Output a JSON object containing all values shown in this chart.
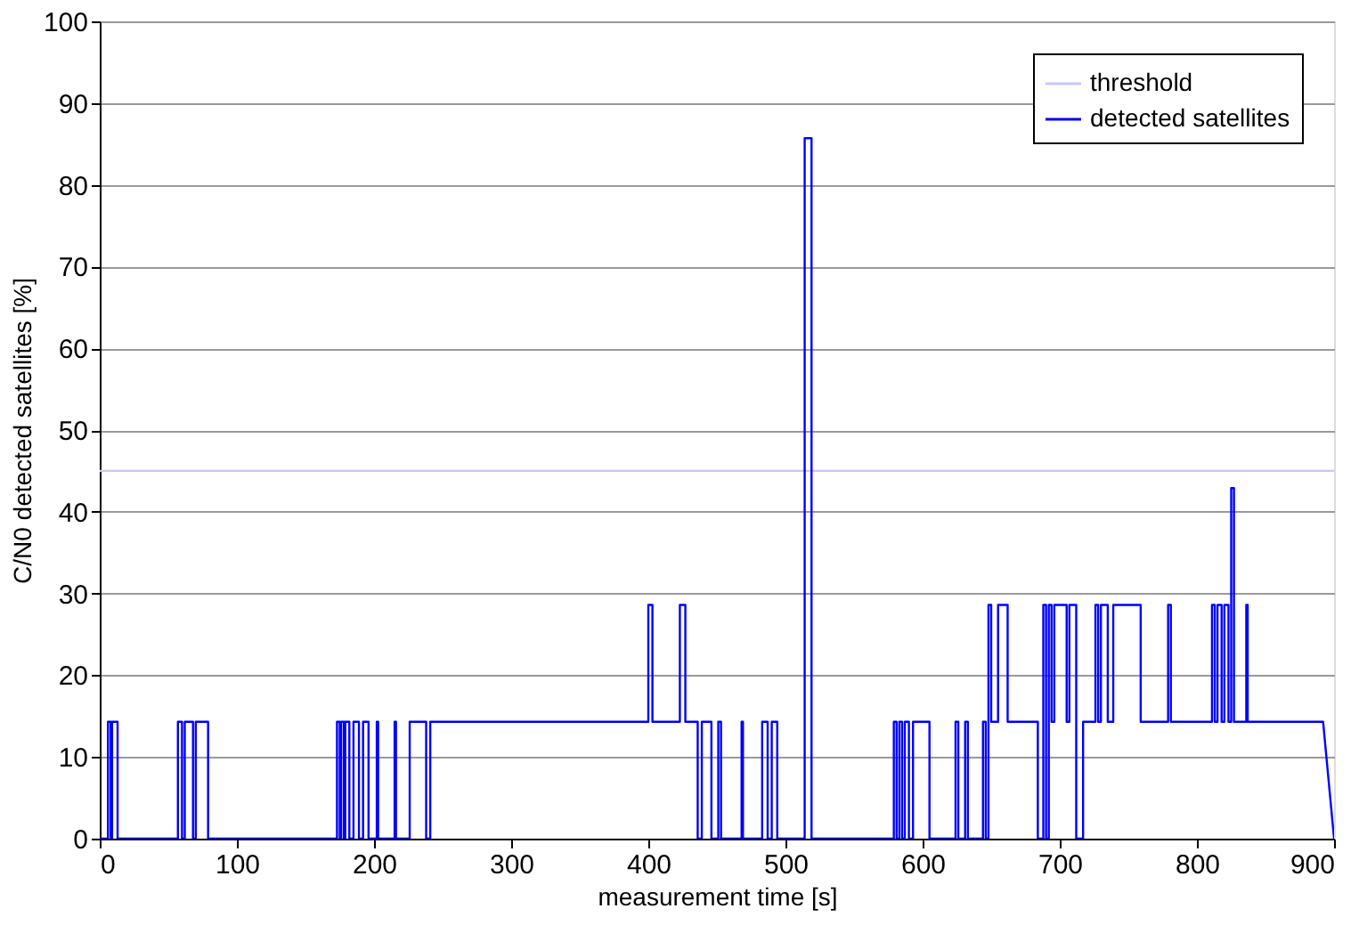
{
  "chart_data": {
    "type": "line",
    "xlabel": "measurement time  [s]",
    "ylabel": "C/N0 detected satellites  [%]",
    "xlim": [
      0,
      900
    ],
    "xticks": [
      0,
      100,
      200,
      300,
      400,
      500,
      600,
      700,
      800,
      900
    ],
    "ylim": [
      0,
      100
    ],
    "yticks": [
      0,
      10,
      20,
      30,
      40,
      50,
      60,
      70,
      80,
      90,
      100
    ],
    "grid": "y",
    "legend": "top right",
    "line_style": "solid",
    "marker": "none",
    "series": [
      {
        "name": "threshold",
        "color": "#c8c8ff",
        "x": [
          0,
          900
        ],
        "values": [
          45,
          45
        ]
      },
      {
        "name": "detected satellites",
        "color": "#0000ff",
        "x": [
          0,
          6,
          6,
          8,
          8,
          9,
          9,
          13,
          13,
          57,
          57,
          60,
          60,
          62,
          62,
          68,
          68,
          70,
          70,
          79,
          79,
          173,
          173,
          175,
          175,
          176,
          176,
          178,
          178,
          179,
          179,
          182,
          182,
          185,
          185,
          189,
          189,
          192,
          192,
          196,
          196,
          202,
          202,
          203,
          203,
          215,
          215,
          216,
          216,
          226,
          226,
          238,
          238,
          241,
          241,
          400,
          400,
          403,
          403,
          423,
          423,
          427,
          427,
          436,
          436,
          439,
          439,
          446,
          446,
          451,
          451,
          453,
          453,
          468,
          468,
          469,
          469,
          483,
          483,
          487,
          487,
          490,
          490,
          494,
          494,
          514,
          514,
          519,
          519,
          579,
          579,
          581,
          581,
          583,
          583,
          585,
          585,
          587,
          587,
          590,
          590,
          593,
          593,
          605,
          605,
          624,
          624,
          626,
          626,
          631,
          631,
          633,
          633,
          644,
          644,
          646,
          646,
          648,
          648,
          650,
          650,
          655,
          655,
          662,
          662,
          684,
          684,
          688,
          688,
          690,
          690,
          692,
          692,
          694,
          694,
          696,
          696,
          705,
          705,
          707,
          707,
          712,
          712,
          717,
          717,
          726,
          726,
          728,
          728,
          730,
          730,
          735,
          735,
          739,
          739,
          759,
          759,
          779,
          779,
          781,
          781,
          811,
          811,
          813,
          813,
          815,
          815,
          818,
          818,
          820,
          820,
          823,
          823,
          825,
          825,
          827,
          827,
          836,
          836,
          837,
          837,
          892,
          900
        ],
        "values": [
          0,
          0,
          14.3,
          14.3,
          0,
          0,
          14.3,
          14.3,
          0,
          0,
          14.3,
          14.3,
          0,
          0,
          14.3,
          14.3,
          0,
          0,
          14.3,
          14.3,
          0,
          0,
          14.3,
          14.3,
          0,
          0,
          14.3,
          14.3,
          0,
          0,
          14.3,
          14.3,
          0,
          0,
          14.3,
          14.3,
          0,
          0,
          14.3,
          14.3,
          0,
          0,
          14.3,
          14.3,
          0,
          0,
          14.3,
          14.3,
          0,
          0,
          14.3,
          14.3,
          0,
          0,
          14.3,
          14.3,
          28.6,
          28.6,
          14.3,
          14.3,
          28.6,
          28.6,
          14.3,
          14.3,
          0,
          0,
          14.3,
          14.3,
          0,
          0,
          14.3,
          14.3,
          0,
          0,
          14.3,
          14.3,
          0,
          0,
          14.3,
          14.3,
          0,
          0,
          14.3,
          14.3,
          0,
          0,
          85.7,
          85.7,
          0,
          0,
          14.3,
          14.3,
          0,
          0,
          14.3,
          14.3,
          0,
          0,
          14.3,
          14.3,
          0,
          0,
          14.3,
          14.3,
          0,
          0,
          14.3,
          14.3,
          0,
          0,
          14.3,
          14.3,
          0,
          0,
          14.3,
          14.3,
          0,
          0,
          28.6,
          28.6,
          14.3,
          14.3,
          28.6,
          28.6,
          14.3,
          14.3,
          0,
          0,
          28.6,
          28.6,
          0,
          0,
          28.6,
          28.6,
          14.3,
          14.3,
          28.6,
          28.6,
          14.3,
          14.3,
          28.6,
          28.6,
          0,
          0,
          14.3,
          14.3,
          28.6,
          28.6,
          14.3,
          14.3,
          28.6,
          28.6,
          14.3,
          14.3,
          28.6,
          28.6,
          14.3,
          14.3,
          28.6,
          28.6,
          14.3,
          14.3,
          28.6,
          28.6,
          14.3,
          14.3,
          28.6,
          28.6,
          14.3,
          14.3,
          28.6,
          28.6,
          14.3,
          14.3,
          42.9,
          42.9,
          14.3,
          14.3,
          28.6,
          28.6,
          14.3,
          14.3,
          0
        ]
      }
    ]
  }
}
